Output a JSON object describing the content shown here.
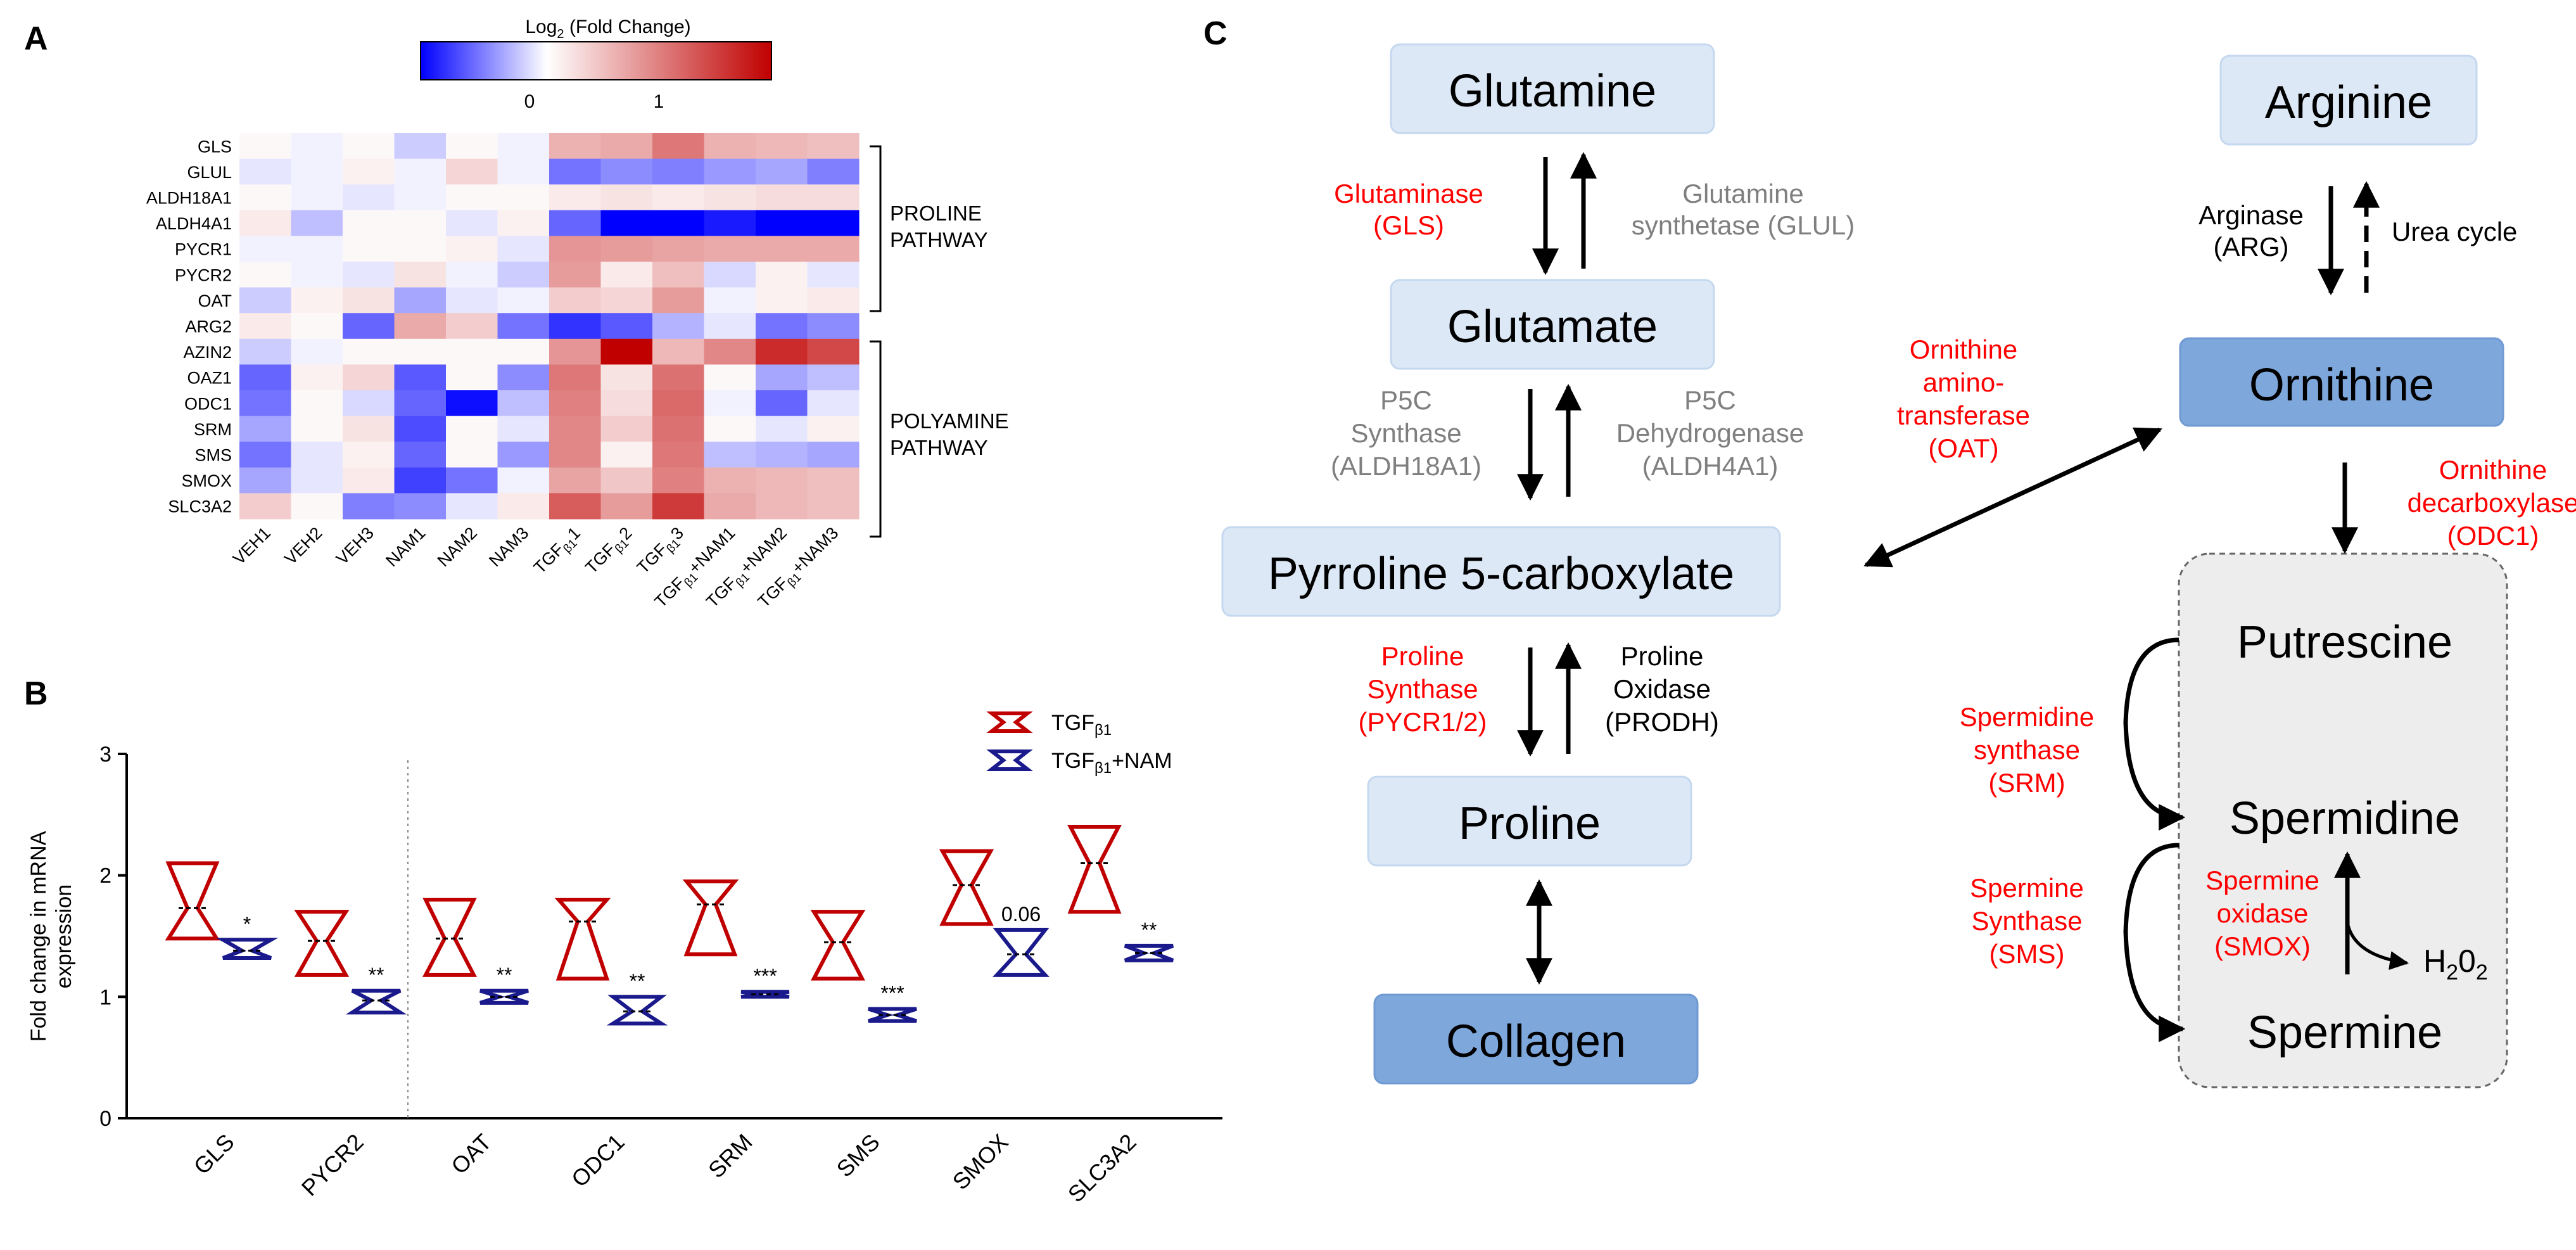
{
  "panels": {
    "a": {
      "letter": "A",
      "colorbar": {
        "title": "Log",
        "title_sub": "2",
        "title_rest": " (Fold Change)",
        "ticks": [
          "0",
          "1"
        ],
        "colors": {
          "low": "#0000ff",
          "mid": "#ffffff",
          "high": "#c00000"
        }
      },
      "heatmap": {
        "rows": [
          "GLS",
          "GLUL",
          "ALDH18A1",
          "ALDH4A1",
          "PYCR1",
          "PYCR2",
          "OAT",
          "ARG2",
          "AZIN2",
          "OAZ1",
          "ODC1",
          "SRM",
          "SMS",
          "SMOX",
          "SLC3A2"
        ],
        "columns": [
          {
            "main": "VEH1",
            "sub": "",
            "tail": ""
          },
          {
            "main": "VEH2",
            "sub": "",
            "tail": ""
          },
          {
            "main": "VEH3",
            "sub": "",
            "tail": ""
          },
          {
            "main": "NAM1",
            "sub": "",
            "tail": ""
          },
          {
            "main": "NAM2",
            "sub": "",
            "tail": ""
          },
          {
            "main": "NAM3",
            "sub": "",
            "tail": ""
          },
          {
            "main": "TGF",
            "sub": "β1",
            "tail": "1"
          },
          {
            "main": "TGF",
            "sub": "β1",
            "tail": "2"
          },
          {
            "main": "TGF",
            "sub": "β1",
            "tail": "3"
          },
          {
            "main": "TGF",
            "sub": "β1",
            "tail": "+NAM1"
          },
          {
            "main": "TGF",
            "sub": "β1",
            "tail": "+NAM2"
          },
          {
            "main": "TGF",
            "sub": "β1",
            "tail": "+NAM3"
          }
        ],
        "values": [
          [
            0.05,
            -0.05,
            0.05,
            -0.2,
            0.05,
            -0.05,
            0.55,
            0.6,
            0.95,
            0.55,
            0.5,
            0.45
          ],
          [
            -0.1,
            -0.05,
            0.1,
            -0.05,
            0.3,
            -0.05,
            -0.55,
            -0.45,
            -0.5,
            -0.4,
            -0.35,
            -0.5
          ],
          [
            0.05,
            -0.05,
            -0.1,
            -0.05,
            0.05,
            0.05,
            0.15,
            0.2,
            0.15,
            0.2,
            0.25,
            0.25
          ],
          [
            0.15,
            -0.25,
            0.05,
            0.05,
            -0.1,
            0.1,
            -0.6,
            -1,
            -1,
            -0.9,
            -1.1,
            -1
          ],
          [
            -0.05,
            -0.05,
            0.05,
            0.05,
            0.1,
            -0.1,
            0.75,
            0.7,
            0.65,
            0.6,
            0.6,
            0.6
          ],
          [
            0.05,
            -0.05,
            -0.1,
            0.2,
            -0.05,
            -0.2,
            0.7,
            0.15,
            0.45,
            -0.15,
            0.1,
            -0.1
          ],
          [
            -0.2,
            0.1,
            0.2,
            -0.35,
            -0.1,
            -0.05,
            0.35,
            0.3,
            0.7,
            -0.05,
            0.1,
            0.15
          ],
          [
            0.15,
            0.05,
            -0.6,
            0.6,
            0.35,
            -0.55,
            -0.8,
            -0.65,
            -0.3,
            -0.1,
            -0.55,
            -0.45
          ],
          [
            -0.2,
            -0.05,
            0.05,
            0.05,
            0.05,
            0.05,
            0.75,
            1.8,
            0.5,
            0.85,
            1.5,
            1.3
          ],
          [
            -0.6,
            0.1,
            0.3,
            -0.65,
            0.05,
            -0.45,
            0.95,
            0.2,
            1.0,
            0.05,
            -0.35,
            -0.25
          ],
          [
            -0.55,
            0.05,
            -0.15,
            -0.6,
            -0.95,
            -0.25,
            0.9,
            0.25,
            1.05,
            -0.05,
            -0.6,
            -0.1
          ],
          [
            -0.35,
            0.05,
            0.2,
            -0.7,
            0.05,
            -0.1,
            0.85,
            0.35,
            1.0,
            0.05,
            -0.1,
            0.1
          ],
          [
            -0.55,
            -0.1,
            0.1,
            -0.6,
            0.05,
            -0.4,
            0.85,
            0.1,
            0.95,
            -0.25,
            -0.3,
            -0.35
          ],
          [
            -0.35,
            -0.1,
            0.15,
            -0.75,
            -0.55,
            -0.05,
            0.65,
            0.4,
            0.9,
            0.55,
            0.5,
            0.45
          ],
          [
            0.35,
            0.05,
            -0.5,
            -0.45,
            -0.1,
            0.15,
            1.15,
            0.7,
            1.4,
            0.6,
            0.5,
            0.45
          ]
        ],
        "groups": [
          {
            "label_line1": "PROLINE",
            "label_line2": "PATHWAY"
          },
          {
            "label_line1": "POLYAMINE",
            "label_line2": "PATHWAY"
          }
        ]
      }
    },
    "b": {
      "letter": "B",
      "ylabel_line1": "Fold change in mRNA",
      "ylabel_line2": "expression",
      "legend": [
        {
          "name": "TGF",
          "sub": "β1",
          "tail": "",
          "color": "#c00000"
        },
        {
          "name": "TGF",
          "sub": "β1",
          "tail": "+NAM",
          "color": "#1a1a8c"
        }
      ]
    },
    "c": {
      "letter": "C",
      "nodes": {
        "glutamine": "Glutamine",
        "glutamate": "Glutamate",
        "p5c": "Pyrroline 5-carboxylate",
        "proline": "Proline",
        "collagen": "Collagen",
        "arginine": "Arginine",
        "ornithine": "Ornithine",
        "putrescine": "Putrescine",
        "spermidine": "Spermidine",
        "spermine": "Spermine"
      },
      "enzymes": {
        "gls": [
          "Glutaminase",
          "(GLS)"
        ],
        "glul": [
          "Glutamine",
          "synthetase (GLUL)"
        ],
        "aldh18a1": [
          "P5C",
          "Synthase",
          "(ALDH18A1)"
        ],
        "aldh4a1": [
          "P5C",
          "Dehydrogenase",
          "(ALDH4A1)"
        ],
        "pycr": [
          "Proline",
          "Synthase",
          "(PYCR1/2)"
        ],
        "prodh": [
          "Proline",
          "Oxidase",
          "(PRODH)"
        ],
        "oat": [
          "Ornithine",
          "amino-",
          "transferase",
          "(OAT)"
        ],
        "arg": [
          "Arginase",
          "(ARG)"
        ],
        "urea": [
          "Urea cycle"
        ],
        "odc1": [
          "Ornithine",
          "decarboxylase",
          "(ODC1)"
        ],
        "srm": [
          "Spermidine",
          "synthase",
          "(SRM)"
        ],
        "sms": [
          "Spermine",
          "Synthase",
          "(SMS)"
        ],
        "smox": [
          "Spermine",
          "oxidase",
          "(SMOX)"
        ]
      },
      "h2o2": {
        "h": "H",
        "s1": "2",
        "o": "0",
        "s2": "2"
      },
      "colors": {
        "node_light": "#dce8f6",
        "node_dark": "#7ea7dc",
        "enzyme_red": "#ff0000",
        "enzyme_gray": "#7f7f7f",
        "box_gray": "#ededed"
      }
    }
  },
  "chart_data": [
    {
      "type": "heatmap",
      "title": "Log2 (Fold Change)",
      "rows": [
        "GLS",
        "GLUL",
        "ALDH18A1",
        "ALDH4A1",
        "PYCR1",
        "PYCR2",
        "OAT",
        "ARG2",
        "AZIN2",
        "OAZ1",
        "ODC1",
        "SRM",
        "SMS",
        "SMOX",
        "SLC3A2"
      ],
      "columns": [
        "VEH1",
        "VEH2",
        "VEH3",
        "NAM1",
        "NAM2",
        "NAM3",
        "TGFβ11",
        "TGFβ12",
        "TGFβ13",
        "TGFβ1+NAM1",
        "TGFβ1+NAM2",
        "TGFβ1+NAM3"
      ],
      "color_range": [
        -1,
        1.8
      ],
      "colorbar_ticks": [
        0,
        1
      ]
    },
    {
      "type": "violin",
      "ylabel": "Fold change in mRNA expression",
      "ylim": [
        0,
        3
      ],
      "yticks": [
        "0",
        "1",
        "2",
        "3"
      ],
      "categories": [
        "GLS",
        "PYCR2",
        "OAT",
        "ODC1",
        "SRM",
        "SMS",
        "SMOX",
        "SLC3A2"
      ],
      "series": [
        {
          "name": "TGFβ1",
          "color": "#c00000",
          "min": [
            1.48,
            1.18,
            1.18,
            1.15,
            1.35,
            1.15,
            1.6,
            1.7
          ],
          "max": [
            2.1,
            1.7,
            1.8,
            1.8,
            1.95,
            1.7,
            2.2,
            2.4
          ],
          "median": [
            1.73,
            1.46,
            1.48,
            1.62,
            1.76,
            1.45,
            1.92,
            2.1
          ]
        },
        {
          "name": "TGFβ1+NAM",
          "color": "#1a1a8c",
          "min": [
            1.32,
            0.87,
            0.95,
            0.78,
            1.0,
            0.8,
            1.18,
            1.3
          ],
          "max": [
            1.47,
            1.05,
            1.05,
            1.0,
            1.04,
            0.9,
            1.55,
            1.42
          ],
          "median": [
            1.38,
            0.97,
            1.0,
            0.88,
            1.02,
            0.85,
            1.35,
            1.36
          ]
        }
      ],
      "annotations": [
        "*",
        "**",
        "**",
        "**",
        "***",
        "***",
        "0.06",
        "**"
      ]
    }
  ]
}
